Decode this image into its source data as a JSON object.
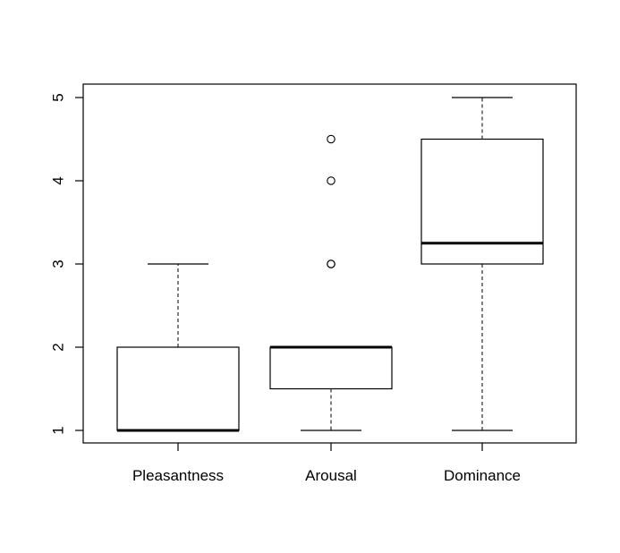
{
  "chart_data": {
    "type": "boxplot",
    "title": "",
    "xlabel": "",
    "ylabel": "",
    "ylim": [
      0.85,
      5.15
    ],
    "yticks": [
      1,
      2,
      3,
      4,
      5
    ],
    "ytick_labels": [
      "1",
      "2",
      "3",
      "4",
      "5"
    ],
    "grid": false,
    "legend": "none",
    "categories": [
      "Pleasantness",
      "Arousal",
      "Dominance"
    ],
    "boxes": [
      {
        "category": "Pleasantness",
        "whisker_low": 1,
        "q1": 1,
        "median": 1,
        "q3": 2,
        "whisker_high": 3,
        "outliers": []
      },
      {
        "category": "Arousal",
        "whisker_low": 1,
        "q1": 1.5,
        "median": 2,
        "q3": 2,
        "whisker_high": 2,
        "outliers": [
          3,
          3,
          4,
          4.5
        ]
      },
      {
        "category": "Dominance",
        "whisker_low": 1,
        "q1": 3,
        "median": 3.25,
        "q3": 4.5,
        "whisker_high": 5,
        "outliers": []
      }
    ],
    "colors": {
      "stroke": "#000000",
      "box_fill": "#ffffff"
    }
  }
}
